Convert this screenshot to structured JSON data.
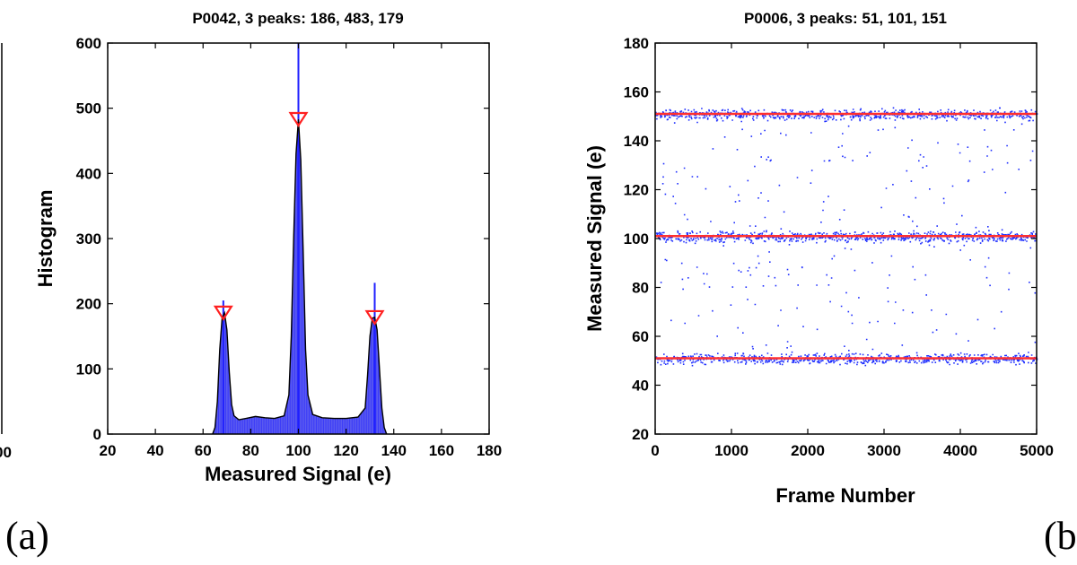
{
  "chart_data": [
    {
      "type": "line",
      "title": "P0042, 3 peaks: 186, 483, 179",
      "xlabel": "Measured Signal (e)",
      "ylabel": "Histogram",
      "xlim": [
        20,
        180
      ],
      "ylim": [
        0,
        600
      ],
      "xticks": [
        "20",
        "40",
        "60",
        "80",
        "100",
        "120",
        "140",
        "160",
        "180"
      ],
      "yticks": [
        "0",
        "100",
        "200",
        "300",
        "400",
        "500",
        "600"
      ],
      "colors": {
        "fill": "#5a5af0",
        "stem": "#1f1fff",
        "fit": "#000000",
        "marker": "#ff2020"
      },
      "fit_curve": {
        "x": [
          64,
          65,
          66,
          67,
          68,
          69,
          70,
          71,
          72,
          73,
          75,
          78,
          82,
          86,
          90,
          94,
          96,
          97,
          98,
          99,
          100,
          101,
          102,
          103,
          104,
          106,
          110,
          115,
          120,
          125,
          128,
          129,
          130,
          131,
          132,
          133,
          134,
          135,
          136,
          137
        ],
        "y": [
          0,
          10,
          50,
          130,
          178,
          186,
          160,
          95,
          45,
          28,
          22,
          24,
          27,
          25,
          24,
          28,
          60,
          150,
          300,
          430,
          483,
          420,
          280,
          130,
          60,
          30,
          25,
          24,
          24,
          26,
          40,
          90,
          150,
          178,
          179,
          160,
          100,
          40,
          10,
          0
        ]
      },
      "stems": [
        {
          "x": 100,
          "y": 600
        },
        {
          "x": 68.5,
          "y": 205
        },
        {
          "x": 132,
          "y": 232
        }
      ],
      "peaks": {
        "x": [
          68.5,
          100,
          132
        ],
        "y": [
          186,
          483,
          179
        ]
      }
    },
    {
      "type": "scatter",
      "title": "P0006, 3 peaks: 51, 101, 151",
      "xlabel": "Frame Number",
      "ylabel": "Measured Signal (e)",
      "xlim": [
        0,
        5000
      ],
      "ylim": [
        20,
        180
      ],
      "xticks": [
        "0",
        "1000",
        "2000",
        "3000",
        "4000",
        "5000"
      ],
      "yticks": [
        "20",
        "40",
        "60",
        "80",
        "100",
        "120",
        "140",
        "160",
        "180"
      ],
      "colors": {
        "points": "#1f2fff",
        "level_lines": "#ff3030"
      },
      "levels": [
        51,
        101,
        151
      ]
    }
  ],
  "partial_left": {
    "tick": "00"
  },
  "panel_labels": {
    "a": "(a)",
    "b": "(b"
  }
}
